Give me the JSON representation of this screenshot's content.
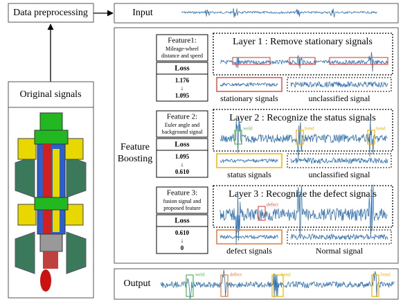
{
  "blocks": {
    "data_preprocessing": "Data preprocessing",
    "input": "Input",
    "original_signals": "Original signals",
    "feature_boosting": [
      "Feature",
      "Boosting"
    ],
    "output": "Output"
  },
  "features": [
    {
      "title": "Feature1:",
      "description": [
        "Mileage-wheel",
        "distance and speed"
      ],
      "loss_label": "Loss",
      "loss_from": "1.176",
      "arrow": "↓",
      "loss_to": "1.095",
      "layer": "Layer 1 : Remove stationary signals",
      "tags": [],
      "left_label": "stationary signals",
      "right_label": "unclassified signal"
    },
    {
      "title": "Feature 2:",
      "description": [
        "Euler angle and",
        "background signal"
      ],
      "loss_label": "Loss",
      "loss_from": "1.095",
      "arrow": "↓",
      "loss_to": "0.610",
      "layer": "Layer 2 : Recognize the status signals",
      "tags": [
        "weld",
        "bend",
        "bend"
      ],
      "left_label": "status signals",
      "right_label": "unclassified signal"
    },
    {
      "title": "Feature 3:",
      "description": [
        "fusion signal and",
        "proposed feature"
      ],
      "loss_label": "Loss",
      "loss_from": "0.610",
      "arrow": "↓",
      "loss_to": "0",
      "layer": "Layer 3 : Recognize the defect signals",
      "tags": [
        "defect"
      ],
      "left_label": "defect signals",
      "right_label": "Normal signal"
    }
  ],
  "output_tags": [
    "weld",
    "defect",
    "bend",
    "bend"
  ]
}
